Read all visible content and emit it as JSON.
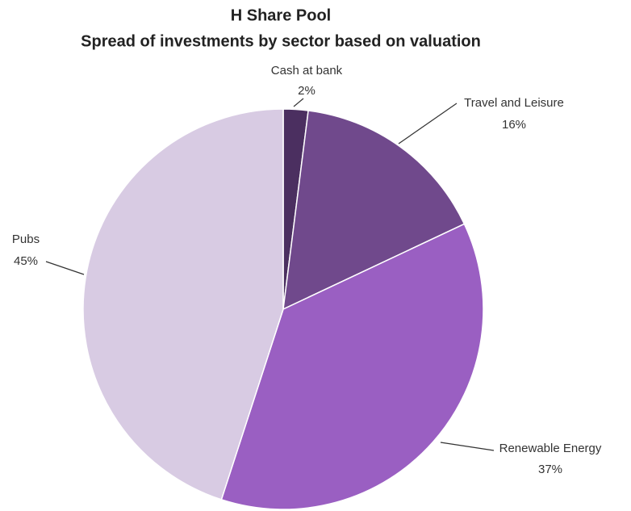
{
  "chart_data": {
    "type": "pie",
    "title": "H Share Pool",
    "subtitle": "Spread of investments by sector based on valuation",
    "categories": [
      "Cash at bank",
      "Travel and Leisure",
      "Renewable Energy",
      "Pubs"
    ],
    "values": [
      2,
      16,
      37,
      45
    ],
    "value_labels": [
      "2%",
      "16%",
      "37%",
      "45%"
    ],
    "colors": [
      "#4b2f60",
      "#70498c",
      "#9a5fc2",
      "#d8cbe3"
    ]
  }
}
